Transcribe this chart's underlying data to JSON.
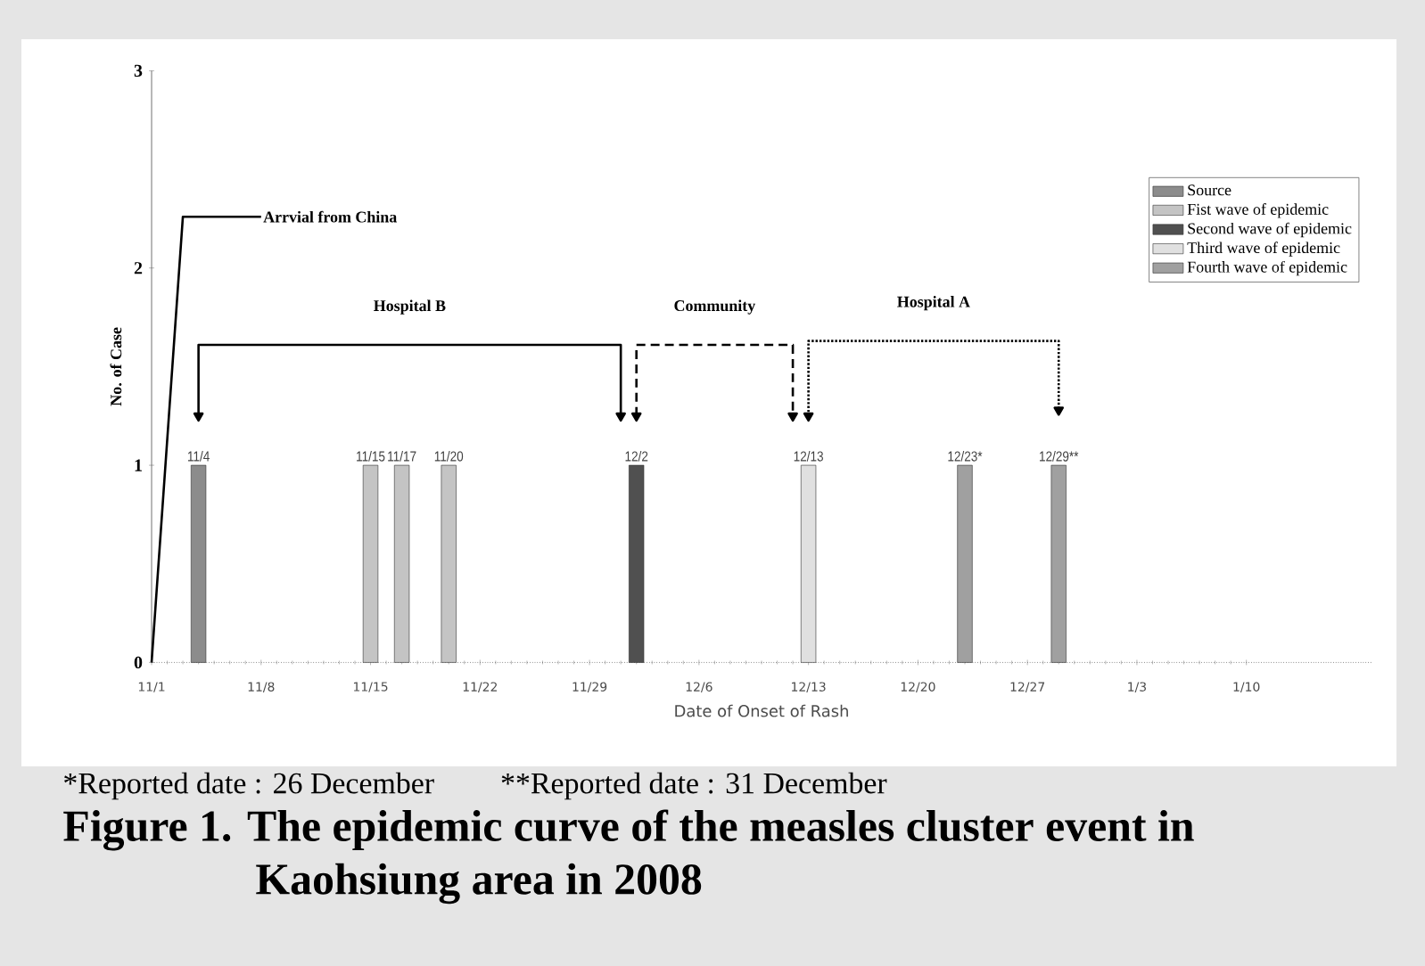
{
  "chart_data": {
    "type": "bar",
    "title": "Figure 1. The epidemic curve of the measles cluster event in Kaohsiung area in 2008",
    "xlabel": "Date of Onset of Rash",
    "ylabel": "No. of Case",
    "xlim": [
      "2008-11-01",
      "2009-01-18"
    ],
    "xticks": [
      {
        "value": "2008-11-01",
        "label": "11/1"
      },
      {
        "value": "2008-11-08",
        "label": "11/8"
      },
      {
        "value": "2008-11-15",
        "label": "11/15"
      },
      {
        "value": "2008-11-22",
        "label": "11/22"
      },
      {
        "value": "2008-11-29",
        "label": "11/29"
      },
      {
        "value": "2008-12-06",
        "label": "12/6"
      },
      {
        "value": "2008-12-13",
        "label": "12/13"
      },
      {
        "value": "2008-12-20",
        "label": "12/20"
      },
      {
        "value": "2008-12-27",
        "label": "12/27"
      },
      {
        "value": "2009-01-03",
        "label": "1/3"
      },
      {
        "value": "2009-01-10",
        "label": "1/10"
      }
    ],
    "ylim": [
      0,
      3
    ],
    "yticks": [
      0,
      1,
      2,
      3
    ],
    "legend": "top right",
    "series": [
      {
        "name": "Source",
        "color": "#8c8c8c",
        "x": [
          "2008-11-04"
        ],
        "values": [
          1
        ]
      },
      {
        "name": "Fist wave of epidemic",
        "color": "#c4c4c4",
        "x": [
          "2008-11-15",
          "2008-11-17",
          "2008-11-20"
        ],
        "values": [
          1,
          1,
          1
        ]
      },
      {
        "name": "Second wave of epidemic",
        "color": "#505050",
        "x": [
          "2008-12-02"
        ],
        "values": [
          1
        ]
      },
      {
        "name": "Third wave of epidemic",
        "color": "#e0e0e0",
        "x": [
          "2008-12-13"
        ],
        "values": [
          1
        ]
      },
      {
        "name": "Fourth wave of epidemic",
        "color": "#a0a0a0",
        "x": [
          "2008-12-23",
          "2008-12-29"
        ],
        "values": [
          1,
          1
        ]
      },
      {
        "type": "line",
        "color": "#000000",
        "line_style": "solid",
        "x": [
          "2008-11-08",
          "2008-11-03",
          "2008-11-01"
        ],
        "values": [
          2.26,
          2.26,
          0
        ]
      },
      {
        "type": "line",
        "color": "#000000",
        "line_style": "solid",
        "marker": "triangle",
        "x": [
          "2008-11-04",
          "2008-11-04",
          "2008-12-01",
          "2008-12-01"
        ],
        "values": [
          1.25,
          1.61,
          1.61,
          1.25
        ]
      },
      {
        "type": "line",
        "color": "#000000",
        "line_style": "dashed",
        "marker": "triangle",
        "x": [
          "2008-12-02",
          "2008-12-02",
          "2008-12-12",
          "2008-12-12"
        ],
        "values": [
          1.25,
          1.61,
          1.61,
          1.25
        ]
      },
      {
        "type": "line",
        "color": "#000000",
        "line_style": "dotted",
        "marker": "triangle",
        "x": [
          "2008-12-13",
          "2008-12-13",
          "2008-12-29",
          "2008-12-29"
        ],
        "values": [
          1.25,
          1.63,
          1.63,
          1.28
        ]
      }
    ],
    "annotations": [
      {
        "text": "11/4",
        "x": "2008-11-04",
        "y": 1
      },
      {
        "text": "11/15",
        "x": "2008-11-15",
        "y": 1
      },
      {
        "text": "11/17",
        "x": "2008-11-17",
        "y": 1
      },
      {
        "text": "11/20",
        "x": "2008-11-20",
        "y": 1
      },
      {
        "text": "12/2",
        "x": "2008-12-02",
        "y": 1
      },
      {
        "text": "12/13",
        "x": "2008-12-13",
        "y": 1
      },
      {
        "text": "12/23*",
        "x": "2008-12-23",
        "y": 1
      },
      {
        "text": "12/29**",
        "x": "2008-12-29",
        "y": 1
      },
      "Arrvial from China",
      "Hospital B",
      "Community",
      "Hospital A",
      "*Reported date : 26 December",
      "**Reported date : 31 December"
    ]
  }
}
